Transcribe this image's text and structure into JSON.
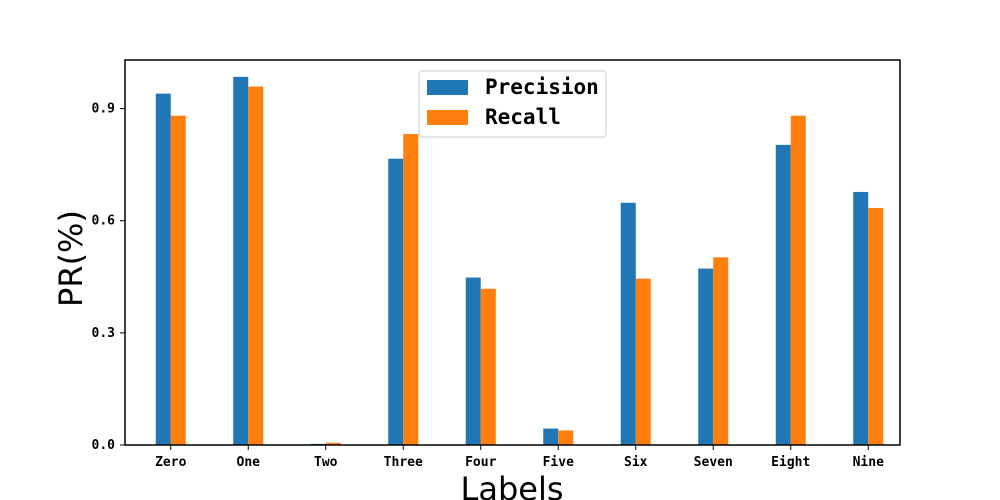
{
  "chart_data": {
    "type": "bar",
    "categories": [
      "Zero",
      "One",
      "Two",
      "Three",
      "Four",
      "Five",
      "Six",
      "Seven",
      "Eight",
      "Nine"
    ],
    "series": [
      {
        "name": "Precision",
        "color": "#1f77b4",
        "values": [
          0.94,
          0.985,
          0.003,
          0.766,
          0.448,
          0.044,
          0.648,
          0.472,
          0.803,
          0.677
        ]
      },
      {
        "name": "Recall",
        "color": "#ff7f0e",
        "values": [
          0.881,
          0.959,
          0.006,
          0.832,
          0.418,
          0.039,
          0.445,
          0.502,
          0.881,
          0.634
        ]
      }
    ],
    "xlabel": "Labels",
    "ylabel": "PR(%)",
    "ylim": [
      0,
      1.03
    ],
    "yticks": [
      0.0,
      0.3,
      0.6,
      0.9
    ],
    "ytick_labels": [
      "0.0",
      "0.3",
      "0.6",
      "0.9"
    ],
    "legend": "top-center",
    "grid": false
  }
}
